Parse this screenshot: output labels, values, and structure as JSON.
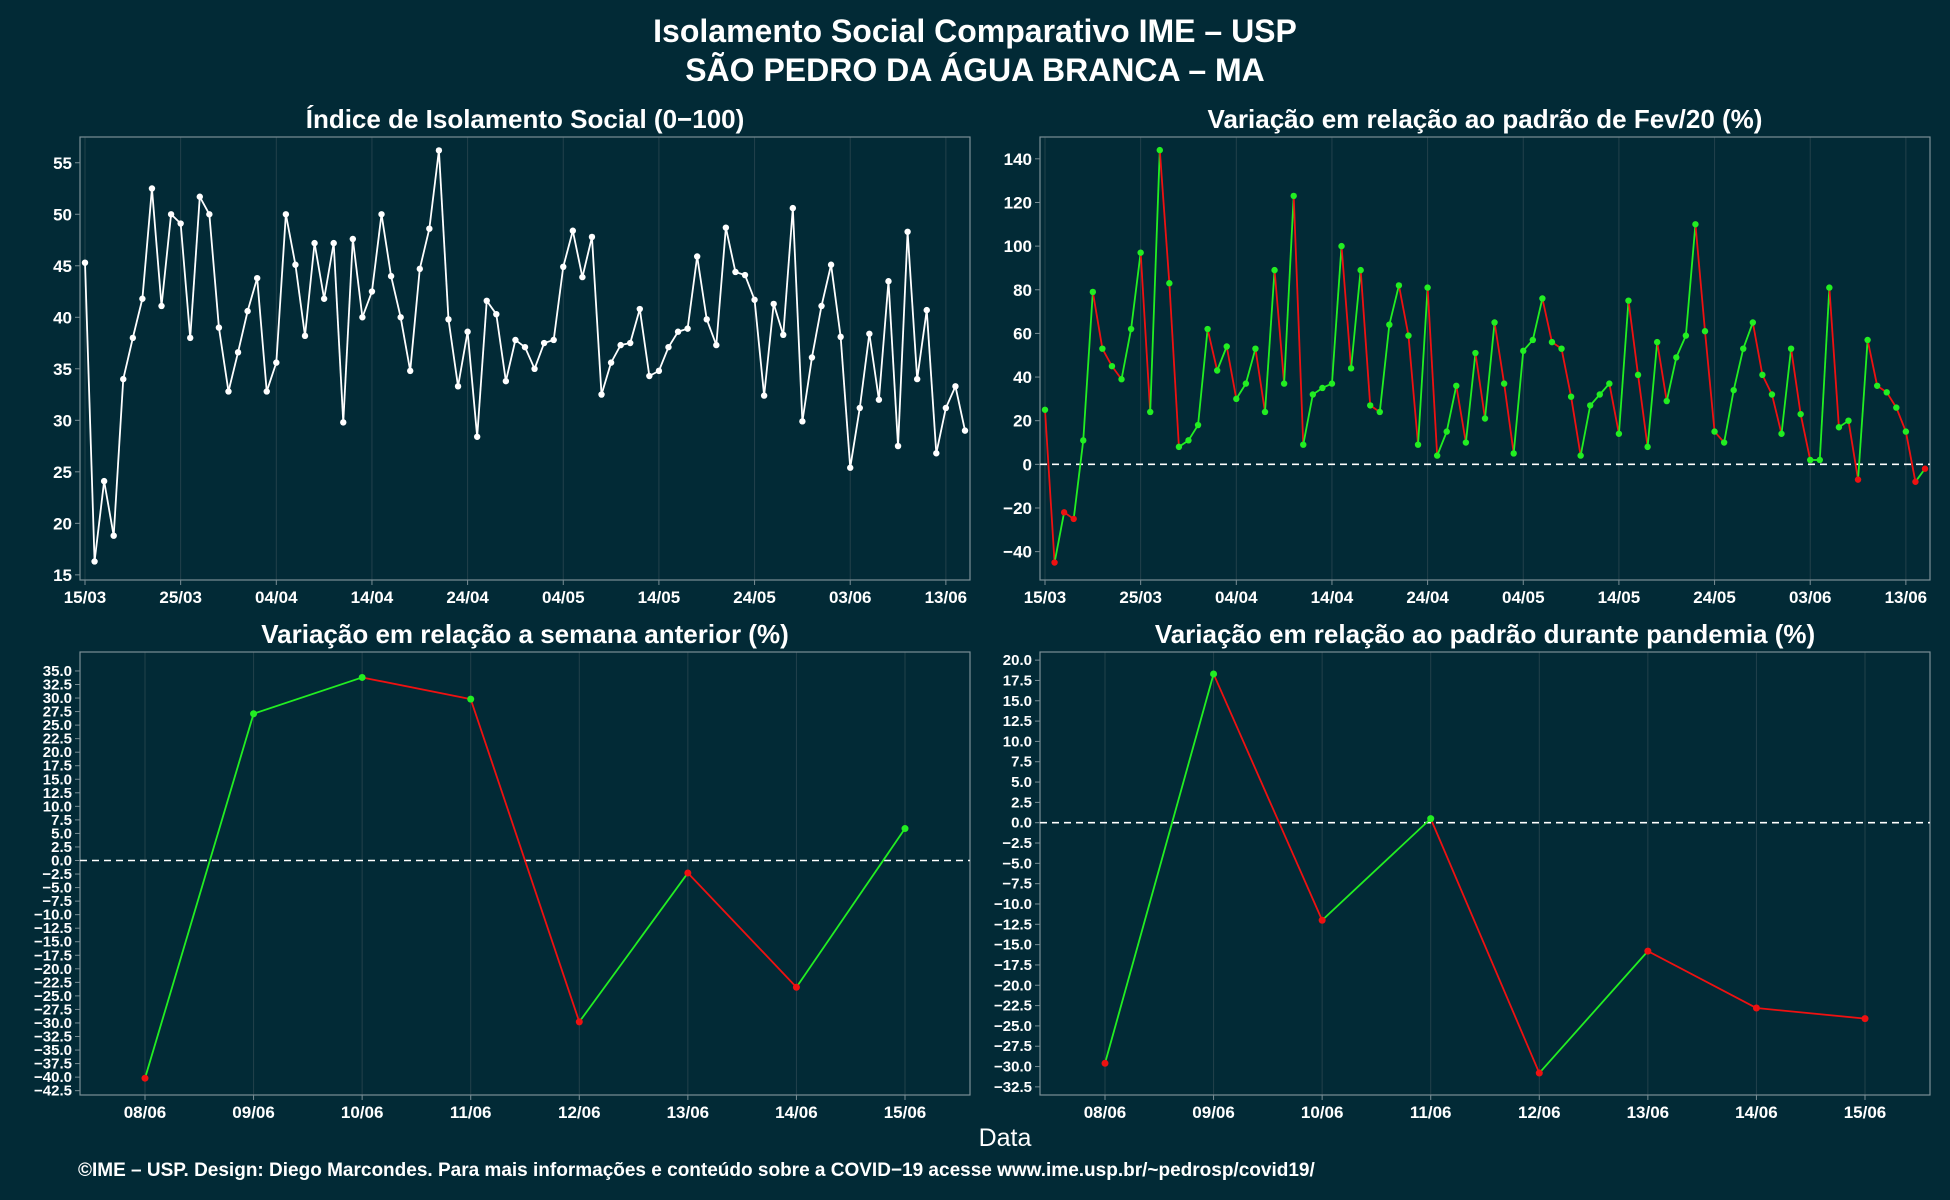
{
  "header": {
    "title_line1": "Isolamento Social Comparativo IME – USP",
    "title_line2": "SÃO PEDRO DA ÁGUA BRANCA – MA"
  },
  "xaxis_label": "Data",
  "footer": "©IME – USP. Design: Diego Marcondes. Para mais informações e conteúdo sobre a COVID−19 acesse www.ime.usp.br/~pedrosp/covid19/",
  "colors": {
    "background": "#022a36",
    "panel_border": "#7a8e95",
    "grid": "#23414b",
    "white_line": "#ffffff",
    "positive": "#22ee22",
    "negative": "#ee1111"
  },
  "chart_data": [
    {
      "id": "isolamento",
      "type": "line",
      "title": "Índice de Isolamento Social (0−100)",
      "color_mode": "white",
      "start_date": "2020-03-15",
      "x_tick_labels": [
        "15/03",
        "25/03",
        "04/04",
        "14/04",
        "24/04",
        "04/05",
        "14/05",
        "24/05",
        "03/06",
        "13/06"
      ],
      "x_tick_days": [
        0,
        10,
        20,
        30,
        40,
        50,
        60,
        70,
        80,
        90
      ],
      "ylim": [
        14.5,
        57.5
      ],
      "y_ticks": [
        15,
        20,
        25,
        30,
        35,
        40,
        45,
        50,
        55
      ],
      "zero_line": false,
      "values": [
        45.3,
        16.3,
        24.1,
        18.8,
        34.0,
        38.0,
        41.8,
        52.5,
        41.1,
        50.0,
        49.1,
        38.0,
        51.7,
        50.0,
        39.0,
        32.8,
        36.6,
        40.6,
        43.8,
        32.8,
        35.6,
        50.0,
        45.1,
        38.2,
        47.2,
        41.8,
        47.2,
        29.8,
        47.6,
        40.0,
        42.5,
        50.0,
        44.0,
        40.0,
        34.8,
        44.7,
        48.6,
        56.2,
        39.8,
        33.3,
        38.6,
        28.4,
        41.6,
        40.3,
        33.8,
        37.8,
        37.1,
        35.0,
        37.5,
        37.8,
        44.9,
        48.4,
        43.9,
        47.8,
        32.5,
        35.6,
        37.3,
        37.5,
        40.8,
        34.3,
        34.8,
        37.1,
        38.6,
        38.9,
        45.9,
        39.8,
        37.3,
        48.7,
        44.4,
        44.1,
        41.7,
        32.4,
        41.3,
        38.3,
        50.6,
        29.9,
        36.1,
        41.1,
        45.1,
        38.1,
        25.4,
        31.2,
        38.4,
        32.0,
        43.5,
        27.5,
        48.3,
        34.0,
        40.7,
        26.8,
        31.2,
        33.3,
        29.0
      ]
    },
    {
      "id": "fev20",
      "type": "line",
      "title": "Variação em relação ao padrão de Fev/20 (%)",
      "color_mode": "sign",
      "start_date": "2020-03-15",
      "x_tick_labels": [
        "15/03",
        "25/03",
        "04/04",
        "14/04",
        "24/04",
        "04/05",
        "14/05",
        "24/05",
        "03/06",
        "13/06"
      ],
      "x_tick_days": [
        0,
        10,
        20,
        30,
        40,
        50,
        60,
        70,
        80,
        90
      ],
      "ylim": [
        -53,
        150
      ],
      "y_ticks": [
        -40,
        -20,
        0,
        20,
        40,
        60,
        80,
        100,
        120,
        140
      ],
      "zero_line": true,
      "values": [
        25,
        -45,
        -22,
        -25,
        11,
        79,
        53,
        45,
        39,
        62,
        97,
        24,
        144,
        83,
        8,
        11,
        18,
        62,
        43,
        54,
        30,
        37,
        53,
        24,
        89,
        37,
        123,
        9,
        32,
        35,
        37,
        100,
        44,
        89,
        27,
        24,
        64,
        82,
        59,
        9,
        81,
        4,
        15,
        36,
        10,
        51,
        21,
        65,
        37,
        5,
        52,
        57,
        76,
        56,
        53,
        31,
        4,
        27,
        32,
        37,
        14,
        75,
        41,
        8,
        56,
        29,
        49,
        59,
        110,
        61,
        15,
        10,
        34,
        53,
        65,
        41,
        32,
        14,
        53,
        23,
        2,
        2,
        81,
        17,
        20,
        -7,
        57,
        36,
        33,
        26,
        15,
        -8,
        -2
      ]
    },
    {
      "id": "semana",
      "type": "line",
      "title": "Variação em relação a semana anterior (%)",
      "color_mode": "sign",
      "categories": [
        "08/06",
        "09/06",
        "10/06",
        "11/06",
        "12/06",
        "13/06",
        "14/06",
        "15/06"
      ],
      "values": [
        -40.2,
        27.1,
        33.8,
        29.8,
        -29.8,
        -2.3,
        -23.4,
        5.9
      ],
      "ylim": [
        -43.3,
        38.5
      ],
      "y_ticks": [
        -42.5,
        -40.0,
        -37.5,
        -35.0,
        -32.5,
        -30.0,
        -27.5,
        -25.0,
        -22.5,
        -20.0,
        -17.5,
        -15.0,
        -12.5,
        -10.0,
        -7.5,
        -5.0,
        -2.5,
        0.0,
        2.5,
        5.0,
        7.5,
        10.0,
        12.5,
        15.0,
        17.5,
        20.0,
        22.5,
        25.0,
        27.5,
        30.0,
        32.5,
        35.0
      ],
      "zero_line": true
    },
    {
      "id": "pandemia",
      "type": "line",
      "title": "Variação em relação ao padrão durante pandemia (%)",
      "color_mode": "sign",
      "categories": [
        "08/06",
        "09/06",
        "10/06",
        "11/06",
        "12/06",
        "13/06",
        "14/06",
        "15/06"
      ],
      "values": [
        -29.6,
        18.3,
        -12.0,
        0.5,
        -30.8,
        -15.8,
        -22.8,
        -24.1
      ],
      "ylim": [
        -33.5,
        21.0
      ],
      "y_ticks": [
        -32.5,
        -30.0,
        -27.5,
        -25.0,
        -22.5,
        -20.0,
        -17.5,
        -15.0,
        -12.5,
        -10.0,
        -7.5,
        -5.0,
        -2.5,
        0.0,
        2.5,
        5.0,
        7.5,
        10.0,
        12.5,
        15.0,
        17.5,
        20.0
      ],
      "zero_line": true
    }
  ]
}
